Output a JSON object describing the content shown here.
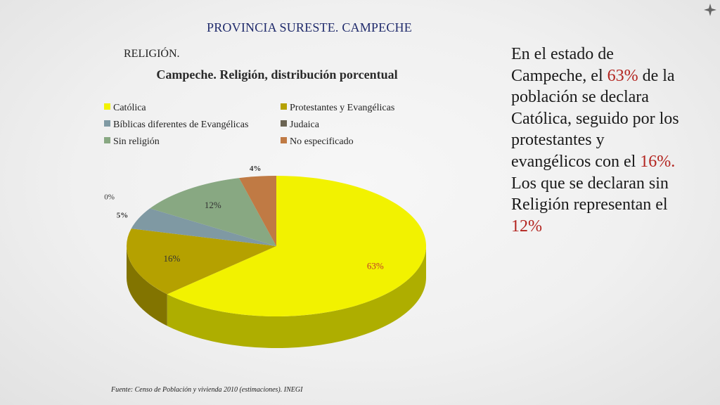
{
  "header": {
    "title": "PROVINCIA SURESTE. CAMPECHE"
  },
  "section_label": "RELIGIÓN.",
  "source_note": "Fuente: Censo de Población y vivienda 2010 (estimaciones). INEGI",
  "summary": {
    "p1": "En el  estado de Campeche, el",
    "pct_catholic": "63%",
    "p2": "de la población se declara Católica, seguido por los protestantes y evangélicos con el",
    "pct_protestant": "16%.",
    "p3": "Los que se declaran sin Religión representan el",
    "pct_none": "12%"
  },
  "chart_data": {
    "type": "pie",
    "title": "Campeche. Religión, distribución porcentual",
    "legend_position": "top",
    "series": [
      {
        "name": "Católica",
        "value": 63,
        "label": "63%",
        "color": "#f2f200"
      },
      {
        "name": "Protestantes y Evangélicas",
        "value": 16,
        "label": "16%",
        "color": "#b5a100"
      },
      {
        "name": "Bíblicas diferentes de Evangélicas",
        "value": 5,
        "label": "5%",
        "color": "#7f99a3"
      },
      {
        "name": "Judaica",
        "value": 0,
        "label": "0%",
        "color": "#6b6452"
      },
      {
        "name": "Sin religión",
        "value": 12,
        "label": "12%",
        "color": "#88a882"
      },
      {
        "name": "No especificado",
        "value": 4,
        "label": "4%",
        "color": "#c07a44"
      }
    ]
  }
}
